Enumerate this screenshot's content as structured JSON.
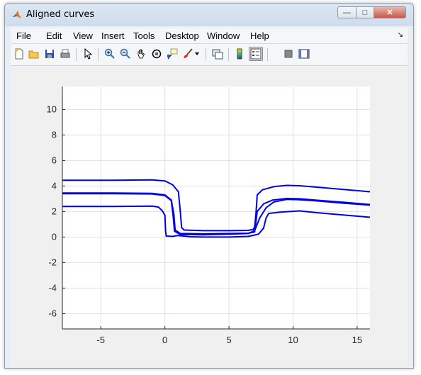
{
  "window": {
    "title": "Aligned curves",
    "controls": {
      "minimize": "—",
      "maximize": "□",
      "close": "✕"
    }
  },
  "menu": {
    "items": [
      "File",
      "Edit",
      "View",
      "Insert",
      "Tools",
      "Desktop",
      "Window",
      "Help"
    ],
    "dock_icon": "dock-arrow-icon"
  },
  "toolbar": {
    "icons": [
      "new-figure-icon",
      "open-file-icon",
      "save-icon",
      "print-icon",
      "pointer-icon",
      "zoom-in-icon",
      "zoom-out-icon",
      "pan-icon",
      "rotate-3d-icon",
      "data-cursor-icon",
      "brush-icon",
      "brush-dropdown-icon",
      "link-plot-icon",
      "colorbar-icon",
      "legend-icon",
      "hide-plot-tools-icon",
      "show-plot-tools-icon"
    ]
  },
  "colors": {
    "line": "#0000e6",
    "grid": "#e0e0e0",
    "axes_bg": "#ffffff"
  },
  "chart_data": {
    "type": "line",
    "title": "",
    "xlabel": "",
    "ylabel": "",
    "xlim": [
      -8,
      16
    ],
    "ylim": [
      -7.2,
      11.8
    ],
    "xticks": [
      -5,
      0,
      5,
      10,
      15
    ],
    "yticks": [
      -6,
      -4,
      -2,
      0,
      2,
      4,
      6,
      8,
      10
    ],
    "grid": true,
    "series": [
      {
        "color": "#0000e6",
        "points": [
          [
            -8,
            4.45
          ],
          [
            -4,
            4.45
          ],
          [
            -1,
            4.48
          ],
          [
            0,
            4.4
          ],
          [
            0.6,
            4.1
          ],
          [
            1.05,
            3.55
          ],
          [
            1.2,
            2.0
          ],
          [
            1.3,
            0.75
          ],
          [
            1.5,
            0.55
          ],
          [
            3,
            0.5
          ],
          [
            5,
            0.5
          ],
          [
            6.5,
            0.52
          ],
          [
            6.9,
            0.6
          ],
          [
            7.0,
            0.8
          ],
          [
            7.1,
            1.8
          ],
          [
            7.2,
            3.3
          ],
          [
            7.6,
            3.7
          ],
          [
            8.5,
            3.95
          ],
          [
            9.5,
            4.05
          ],
          [
            10.5,
            4.02
          ],
          [
            12,
            3.9
          ],
          [
            14,
            3.72
          ],
          [
            16,
            3.55
          ]
        ]
      },
      {
        "color": "#0000e6",
        "points": [
          [
            -8,
            3.45
          ],
          [
            -4,
            3.45
          ],
          [
            -1,
            3.42
          ],
          [
            0,
            3.3
          ],
          [
            0.5,
            2.9
          ],
          [
            0.7,
            1.8
          ],
          [
            0.8,
            0.55
          ],
          [
            1.2,
            0.28
          ],
          [
            3,
            0.25
          ],
          [
            5,
            0.28
          ],
          [
            6.5,
            0.3
          ],
          [
            7.0,
            0.4
          ],
          [
            7.1,
            1.2
          ],
          [
            7.2,
            2.0
          ],
          [
            7.7,
            2.6
          ],
          [
            8.4,
            2.9
          ],
          [
            9.5,
            3.02
          ],
          [
            10.5,
            3.0
          ],
          [
            12,
            2.88
          ],
          [
            14,
            2.72
          ],
          [
            16,
            2.55
          ]
        ]
      },
      {
        "color": "#0000e6",
        "points": [
          [
            -8,
            3.4
          ],
          [
            -4,
            3.4
          ],
          [
            -1,
            3.38
          ],
          [
            0,
            3.25
          ],
          [
            0.5,
            2.85
          ],
          [
            0.65,
            1.6
          ],
          [
            0.75,
            0.45
          ],
          [
            1.2,
            0.2
          ],
          [
            3,
            0.18
          ],
          [
            5,
            0.22
          ],
          [
            6.5,
            0.28
          ],
          [
            7.0,
            0.5
          ],
          [
            7.4,
            1.5
          ],
          [
            7.9,
            2.3
          ],
          [
            8.5,
            2.75
          ],
          [
            9.5,
            2.95
          ],
          [
            10.5,
            2.93
          ],
          [
            12,
            2.82
          ],
          [
            14,
            2.65
          ],
          [
            16,
            2.5
          ]
        ]
      },
      {
        "color": "#0000e6",
        "points": [
          [
            -8,
            2.4
          ],
          [
            -4,
            2.4
          ],
          [
            -1,
            2.43
          ],
          [
            -0.5,
            2.35
          ],
          [
            -0.2,
            2.05
          ],
          [
            0,
            1.7
          ],
          [
            0.05,
            0.5
          ],
          [
            0.1,
            0.08
          ],
          [
            0.6,
            0.05
          ],
          [
            1,
            0.12
          ],
          [
            2,
            0.02
          ],
          [
            3,
            0.0
          ],
          [
            5,
            0.0
          ],
          [
            6.5,
            0.05
          ],
          [
            7.3,
            0.22
          ],
          [
            7.7,
            0.7
          ],
          [
            7.9,
            1.5
          ],
          [
            8.1,
            1.85
          ],
          [
            9,
            1.95
          ],
          [
            10.5,
            2.05
          ],
          [
            12,
            1.9
          ],
          [
            14,
            1.72
          ],
          [
            16,
            1.55
          ]
        ]
      }
    ]
  }
}
